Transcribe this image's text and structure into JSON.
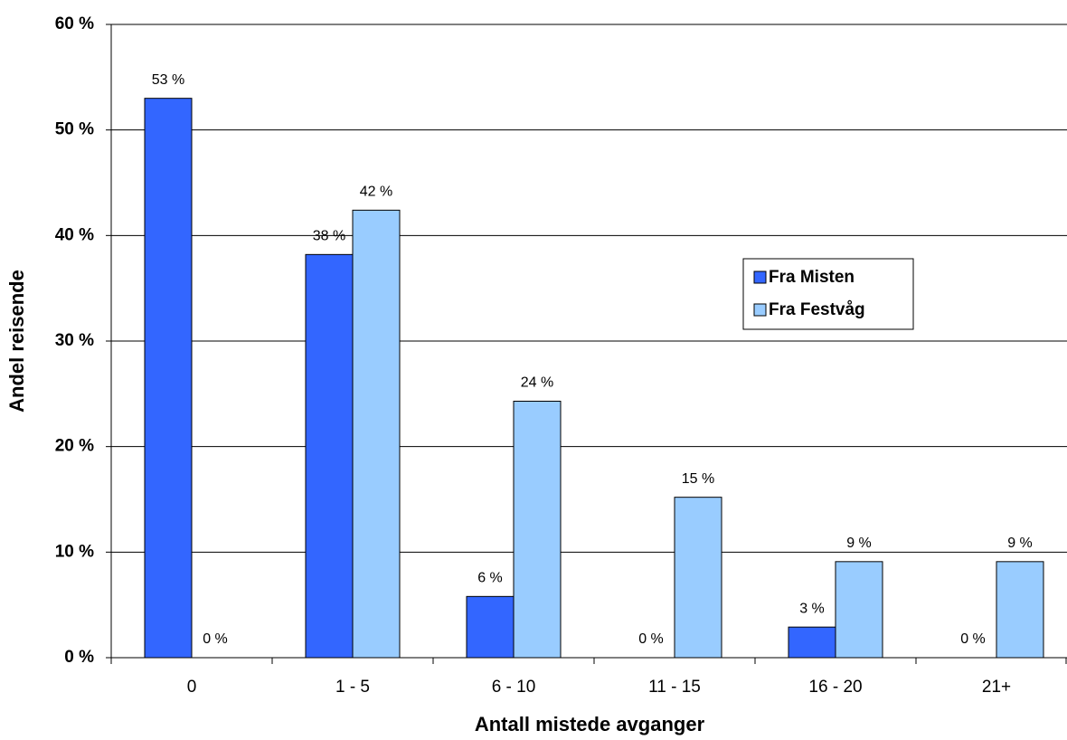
{
  "chart_data": {
    "type": "bar",
    "x_label": "Antall mistede avganger",
    "y_label": "Andel reisende",
    "categories": [
      "0",
      "1 - 5",
      "6 - 10",
      "11 - 15",
      "16 - 20",
      "21+"
    ],
    "series": [
      {
        "name": "Fra Misten",
        "color": "#3366ff",
        "values": [
          53.0,
          38.2,
          5.8,
          0,
          2.9,
          0
        ],
        "value_labels": [
          "53 %",
          "38 %",
          "6 %",
          "0 %",
          "3 %",
          "0 %"
        ]
      },
      {
        "name": "Fra Festvåg",
        "color": "#99ccff",
        "values": [
          0,
          42.4,
          24.3,
          15.2,
          9.1,
          9.1
        ],
        "value_labels": [
          "0 %",
          "42 %",
          "24 %",
          "15 %",
          "9 %",
          "9 %"
        ]
      }
    ],
    "ylim": [
      0,
      60
    ],
    "yticks": [
      {
        "value": 0,
        "label": "0 %"
      },
      {
        "value": 10,
        "label": "10 %"
      },
      {
        "value": 20,
        "label": "20 %"
      },
      {
        "value": 30,
        "label": "30 %"
      },
      {
        "value": 40,
        "label": "40 %"
      },
      {
        "value": 50,
        "label": "50 %"
      },
      {
        "value": 60,
        "label": "60 %"
      }
    ],
    "grid": true,
    "legend": "right"
  }
}
